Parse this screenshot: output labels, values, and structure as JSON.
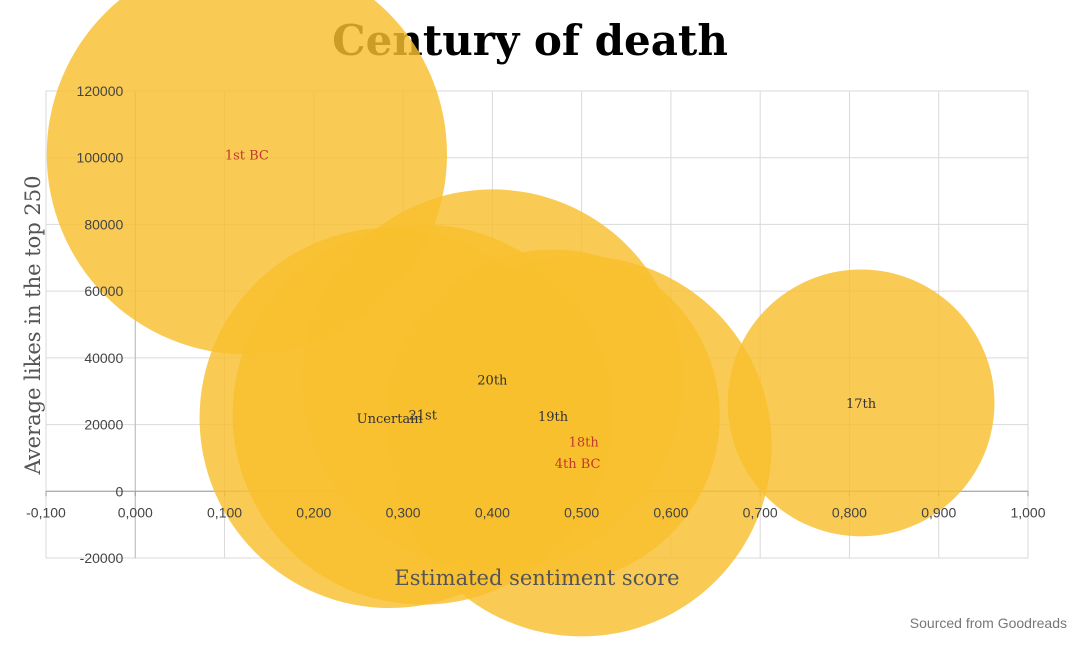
{
  "chart_data": {
    "type": "scatter",
    "title": "Century of death",
    "xlabel": "Estimated sentiment score",
    "ylabel": "Average likes in the top 250",
    "xlim": [
      -0.1,
      1.0
    ],
    "ylim": [
      -20000,
      120000
    ],
    "x_tick_labels": [
      "-0,100",
      "0,000",
      "0,100",
      "0,200",
      "0,300",
      "0,400",
      "0,500",
      "0,600",
      "0,700",
      "0,800",
      "0,900",
      "1,000"
    ],
    "x_ticks": [
      -0.1,
      0.0,
      0.1,
      0.2,
      0.3,
      0.4,
      0.5,
      0.6,
      0.7,
      0.8,
      0.9,
      1.0
    ],
    "y_tick_labels": [
      "-20000",
      "0",
      "20000",
      "40000",
      "60000",
      "80000",
      "100000",
      "120000"
    ],
    "y_ticks": [
      -20000,
      0,
      20000,
      40000,
      60000,
      80000,
      100000,
      120000
    ],
    "bubble_color": "#f9c02e",
    "grid": true,
    "points": [
      {
        "label": "1st BC",
        "x": 0.125,
        "y": 101000,
        "size": 60000,
        "label_color": "#c0392b"
      },
      {
        "label": "Uncertain",
        "x": 0.285,
        "y": 22000,
        "size": 57000,
        "label_color": "#333333"
      },
      {
        "label": "21st",
        "x": 0.322,
        "y": 23000,
        "size": 57000,
        "label_color": "#333333"
      },
      {
        "label": "20th",
        "x": 0.4,
        "y": 33500,
        "size": 57000,
        "label_color": "#333333"
      },
      {
        "label": "19th",
        "x": 0.468,
        "y": 22500,
        "size": 50000,
        "label_color": "#333333"
      },
      {
        "label": "18th",
        "x": 0.5,
        "y": 13500,
        "size": 57000,
        "label_color": "#c0392b"
      },
      {
        "label": "4th BC",
        "x": 0.5,
        "y": 13000,
        "size": 0,
        "label_color": "#c0392b"
      },
      {
        "label": "17th",
        "x": 0.813,
        "y": 26500,
        "size": 40000,
        "label_color": "#333333"
      }
    ]
  },
  "footer": {
    "source": "Sourced from Goodreads"
  }
}
